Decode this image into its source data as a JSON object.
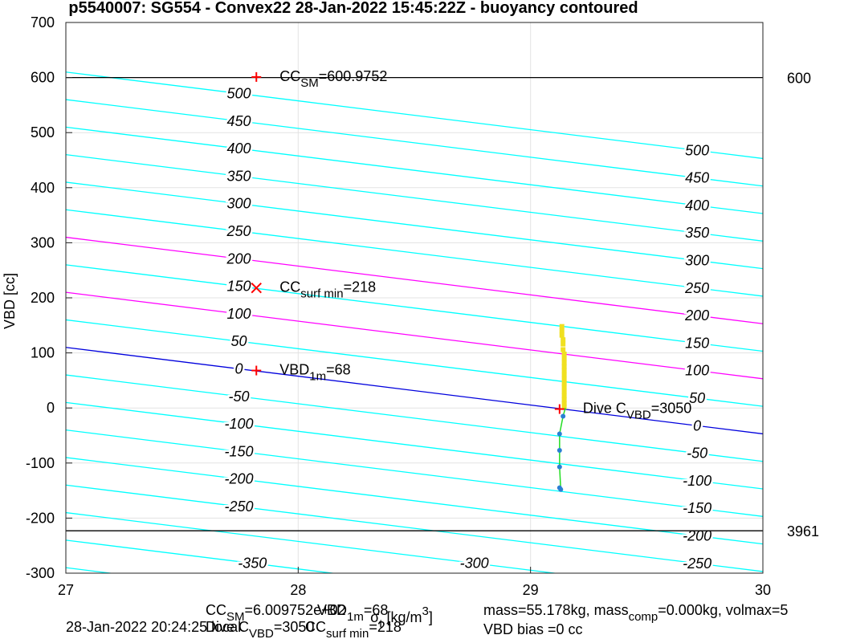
{
  "chart_data": {
    "type": "scatter",
    "title": "p5540007: SG554 - Convex22 28-Jan-2022 15:45:22Z - buoyancy contoured",
    "ylabel": "VBD [cc]",
    "xlabel": [
      {
        "text": "σ"
      },
      {
        "text": "t",
        "shift": "sub"
      },
      {
        "text": " [kg/m"
      },
      {
        "text": "3",
        "shift": "sup"
      },
      {
        "text": "]"
      }
    ],
    "xlim": [
      27,
      30
    ],
    "ylim": [
      -300,
      700
    ],
    "xticks": [
      27,
      28,
      29,
      30
    ],
    "yticks": [
      -300,
      -200,
      -100,
      0,
      100,
      200,
      300,
      400,
      500,
      600,
      700
    ],
    "grid": true,
    "contours": [
      {
        "x": [
          27,
          30
        ],
        "y": [
          -290,
          -447
        ],
        "color": "#00ffff"
      },
      {
        "level": -350,
        "x": [
          27,
          30
        ],
        "y": [
          -240,
          -397
        ],
        "color": "#00ffff"
      },
      {
        "level": -300,
        "x": [
          27,
          30
        ],
        "y": [
          -190,
          -347
        ],
        "color": "#00ffff"
      },
      {
        "level": -250,
        "x": [
          27,
          30
        ],
        "y": [
          -140,
          -297
        ],
        "color": "#00ffff"
      },
      {
        "level": -200,
        "x": [
          27,
          30
        ],
        "y": [
          -90,
          -247
        ],
        "color": "#00ffff"
      },
      {
        "level": -150,
        "x": [
          27,
          30
        ],
        "y": [
          -40,
          -197
        ],
        "color": "#00ffff"
      },
      {
        "level": -100,
        "x": [
          27,
          30
        ],
        "y": [
          10,
          -147
        ],
        "color": "#00ffff"
      },
      {
        "level": -50,
        "x": [
          27,
          30
        ],
        "y": [
          60,
          -97
        ],
        "color": "#00ffff"
      },
      {
        "level": 0,
        "x": [
          27,
          30
        ],
        "y": [
          110,
          -47
        ],
        "color": "#0000dd"
      },
      {
        "level": 50,
        "x": [
          27,
          30
        ],
        "y": [
          160,
          3
        ],
        "color": "#00ffff"
      },
      {
        "level": 100,
        "x": [
          27,
          30
        ],
        "y": [
          210,
          53
        ],
        "color": "#ff00ff"
      },
      {
        "level": 150,
        "x": [
          27,
          30
        ],
        "y": [
          260,
          103
        ],
        "color": "#00ffff"
      },
      {
        "level": 200,
        "x": [
          27,
          30
        ],
        "y": [
          310,
          153
        ],
        "color": "#ff00ff"
      },
      {
        "level": 250,
        "x": [
          27,
          30
        ],
        "y": [
          360,
          203
        ],
        "color": "#00ffff"
      },
      {
        "level": 300,
        "x": [
          27,
          30
        ],
        "y": [
          410,
          253
        ],
        "color": "#00ffff"
      },
      {
        "level": 350,
        "x": [
          27,
          30
        ],
        "y": [
          460,
          303
        ],
        "color": "#00ffff"
      },
      {
        "level": 400,
        "x": [
          27,
          30
        ],
        "y": [
          510,
          353
        ],
        "color": "#00ffff"
      },
      {
        "level": 450,
        "x": [
          27,
          30
        ],
        "y": [
          560,
          403
        ],
        "color": "#00ffff"
      },
      {
        "level": 500,
        "x": [
          27,
          30
        ],
        "y": [
          610,
          453
        ],
        "color": "#00ffff"
      }
    ],
    "hlines": [
      {
        "y": 600,
        "label": "600",
        "color": "#000000"
      },
      {
        "y": -223,
        "label": "3961",
        "color": "#000000"
      }
    ],
    "series": [
      {
        "style": "square",
        "color": "#f0e020",
        "x": [
          29.135,
          29.135,
          29.135,
          29.14,
          29.14,
          29.14,
          29.145,
          29.145,
          29.145,
          29.145,
          29.145,
          29.145,
          29.145,
          29.145,
          29.145,
          29.145,
          29.145,
          29.145,
          29.145,
          29.145
        ],
        "values": [
          148,
          140,
          132,
          124,
          116,
          106,
          98,
          90,
          82,
          75,
          68,
          60,
          52,
          45,
          38,
          30,
          22,
          15,
          8,
          2
        ]
      },
      {
        "style": "line",
        "color": "#22dd22",
        "x": [
          29.15,
          29.14,
          29.125,
          29.125,
          29.125,
          29.13
        ],
        "values": [
          0,
          -15,
          -47,
          -77,
          -107,
          -148
        ]
      },
      {
        "style": "dot",
        "color": "#2a7fd4",
        "x": [
          29.14,
          29.125,
          29.125,
          29.125,
          29.125,
          29.13
        ],
        "values": [
          -15,
          -47,
          -77,
          -107,
          -145,
          -148
        ]
      }
    ],
    "annotations": [
      {
        "marker": "+",
        "color": "#ff0000",
        "x": 27.82,
        "y": 601,
        "parts": [
          {
            "text": "CC"
          },
          {
            "text": "SM",
            "shift": "sub"
          },
          {
            "text": "=600.9752"
          }
        ]
      },
      {
        "marker": "x",
        "color": "#ff0000",
        "x": 27.82,
        "y": 218,
        "parts": [
          {
            "text": "CC"
          },
          {
            "text": "surf min",
            "shift": "sub"
          },
          {
            "text": "=218"
          }
        ]
      },
      {
        "marker": "+",
        "color": "#ff0000",
        "x": 27.82,
        "y": 68,
        "parts": [
          {
            "text": "VBD"
          },
          {
            "text": "1m",
            "shift": "sub"
          },
          {
            "text": "=68"
          }
        ]
      },
      {
        "marker": "+",
        "color": "#ff0000",
        "x": 29.125,
        "y": -2,
        "parts": [
          {
            "text": "Dive C"
          },
          {
            "text": "VBD",
            "shift": "sub"
          },
          {
            "text": "=3050"
          }
        ]
      }
    ],
    "footer": [
      [
        {
          "text": "CC"
        },
        {
          "text": "SM",
          "shift": "sub"
        },
        {
          "text": "=6.009752e+02"
        }
      ],
      [
        {
          "text": "VBD"
        },
        {
          "text": "1m",
          "shift": "sub"
        },
        {
          "text": "=68"
        }
      ],
      [
        {
          "text": "28-Jan-2022 20:24:25 local"
        }
      ],
      [
        {
          "text": "Dive C"
        },
        {
          "text": "VBD",
          "shift": "sub"
        },
        {
          "text": "=3050"
        }
      ],
      [
        {
          "text": "CC"
        },
        {
          "text": "surf min",
          "shift": "sub"
        },
        {
          "text": "=218"
        }
      ],
      [
        {
          "text": "mass=55.178kg, mass"
        },
        {
          "text": "comp",
          "shift": "sub"
        },
        {
          "text": "=0.000kg, volmax=5"
        }
      ],
      [
        {
          "text": "VBD bias =0 cc"
        }
      ]
    ]
  }
}
